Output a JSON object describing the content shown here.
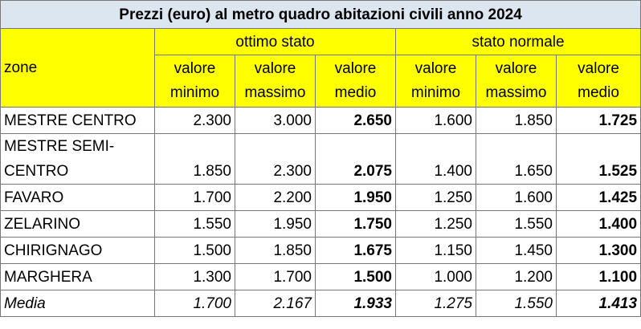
{
  "table": {
    "title": "Prezzi (euro) al metro quadro abitazioni civili anno 2024",
    "zone_header": "zone",
    "groups": [
      "ottimo stato",
      "stato normale"
    ],
    "subheaders": [
      "valore minimo",
      "valore massimo",
      "valore medio",
      "valore minimo",
      "valore massimo",
      "valore medio"
    ],
    "rows": [
      [
        "MESTRE CENTRO",
        "2.300",
        "3.000",
        "2.650",
        "1.600",
        "1.850",
        "1.725"
      ],
      [
        "MESTRE SEMI-CENTRO",
        "1.850",
        "2.300",
        "2.075",
        "1.400",
        "1.650",
        "1.525"
      ],
      [
        "FAVARO",
        "1.700",
        "2.200",
        "1.950",
        "1.250",
        "1.600",
        "1.425"
      ],
      [
        "ZELARINO",
        "1.550",
        "1.950",
        "1.750",
        "1.250",
        "1.550",
        "1.400"
      ],
      [
        "CHIRIGNAGO",
        "1.500",
        "1.850",
        "1.675",
        "1.150",
        "1.450",
        "1.300"
      ],
      [
        "MARGHERA",
        "1.300",
        "1.700",
        "1.500",
        "1.000",
        "1.200",
        "1.100"
      ],
      [
        "Media",
        "1.700",
        "2.167",
        "1.933",
        "1.275",
        "1.550",
        "1.413"
      ]
    ]
  }
}
